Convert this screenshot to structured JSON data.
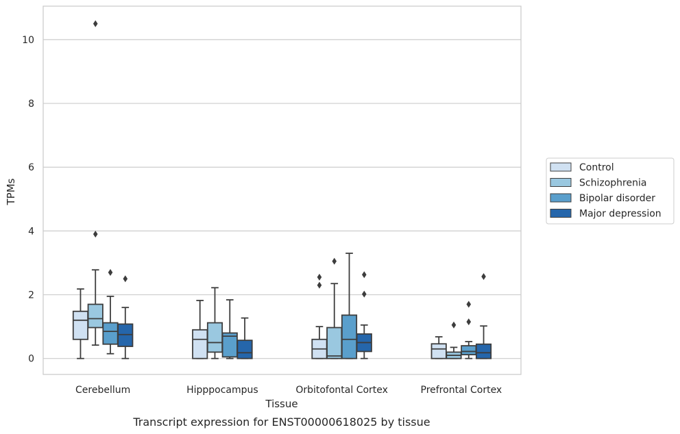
{
  "chart_data": {
    "type": "box",
    "title": "Transcript expression for ENST00000618025 by tissue",
    "xlabel": "Tissue",
    "ylabel": "TPMs",
    "ylim": [
      -0.5,
      11.05
    ],
    "yticks": [
      0,
      2,
      4,
      6,
      8,
      10
    ],
    "grid": "horizontal",
    "legend_position": "right",
    "categories": [
      "Cerebellum",
      "Hipppocampus",
      "Orbitofontal Cortex",
      "Prefrontal Cortex"
    ],
    "series": [
      {
        "name": "Control",
        "color": "#d0e1f2",
        "boxes": [
          {
            "whislo": 0.0,
            "q1": 0.6,
            "med": 1.2,
            "q3": 1.48,
            "whishi": 2.18,
            "fliers": []
          },
          {
            "whislo": 0.0,
            "q1": 0.0,
            "med": 0.6,
            "q3": 0.9,
            "whishi": 1.82,
            "fliers": []
          },
          {
            "whislo": 0.0,
            "q1": 0.0,
            "med": 0.3,
            "q3": 0.6,
            "whishi": 1.0,
            "fliers": [
              2.3,
              2.55
            ]
          },
          {
            "whislo": 0.0,
            "q1": 0.0,
            "med": 0.3,
            "q3": 0.46,
            "whishi": 0.68,
            "fliers": []
          }
        ]
      },
      {
        "name": "Schizophrenia",
        "color": "#9ac8e0",
        "boxes": [
          {
            "whislo": 0.42,
            "q1": 0.97,
            "med": 1.25,
            "q3": 1.7,
            "whishi": 2.78,
            "fliers": [
              3.9,
              10.5
            ]
          },
          {
            "whislo": 0.0,
            "q1": 0.2,
            "med": 0.5,
            "q3": 1.12,
            "whishi": 2.22,
            "fliers": []
          },
          {
            "whislo": 0.0,
            "q1": 0.0,
            "med": 0.08,
            "q3": 0.97,
            "whishi": 2.35,
            "fliers": [
              3.05
            ]
          },
          {
            "whislo": 0.0,
            "q1": 0.0,
            "med": 0.1,
            "q3": 0.2,
            "whishi": 0.35,
            "fliers": [
              1.05
            ]
          }
        ]
      },
      {
        "name": "Bipolar disorder",
        "color": "#5a9fcc",
        "boxes": [
          {
            "whislo": 0.15,
            "q1": 0.45,
            "med": 0.85,
            "q3": 1.12,
            "whishi": 1.95,
            "fliers": [
              2.7
            ]
          },
          {
            "whislo": 0.0,
            "q1": 0.05,
            "med": 0.7,
            "q3": 0.8,
            "whishi": 1.84,
            "fliers": []
          },
          {
            "whislo": 0.0,
            "q1": 0.0,
            "med": 0.6,
            "q3": 1.36,
            "whishi": 3.3,
            "fliers": []
          },
          {
            "whislo": 0.0,
            "q1": 0.12,
            "med": 0.22,
            "q3": 0.4,
            "whishi": 0.53,
            "fliers": [
              1.15,
              1.7
            ]
          }
        ]
      },
      {
        "name": "Major depression",
        "color": "#2566ab",
        "boxes": [
          {
            "whislo": 0.0,
            "q1": 0.38,
            "med": 0.75,
            "q3": 1.08,
            "whishi": 1.6,
            "fliers": [
              2.5
            ]
          },
          {
            "whislo": 0.0,
            "q1": 0.0,
            "med": 0.18,
            "q3": 0.57,
            "whishi": 1.27,
            "fliers": []
          },
          {
            "whislo": 0.0,
            "q1": 0.22,
            "med": 0.5,
            "q3": 0.77,
            "whishi": 1.05,
            "fliers": [
              2.02,
              2.63
            ]
          },
          {
            "whislo": 0.0,
            "q1": 0.0,
            "med": 0.18,
            "q3": 0.45,
            "whishi": 1.02,
            "fliers": [
              2.57
            ]
          }
        ]
      }
    ]
  }
}
